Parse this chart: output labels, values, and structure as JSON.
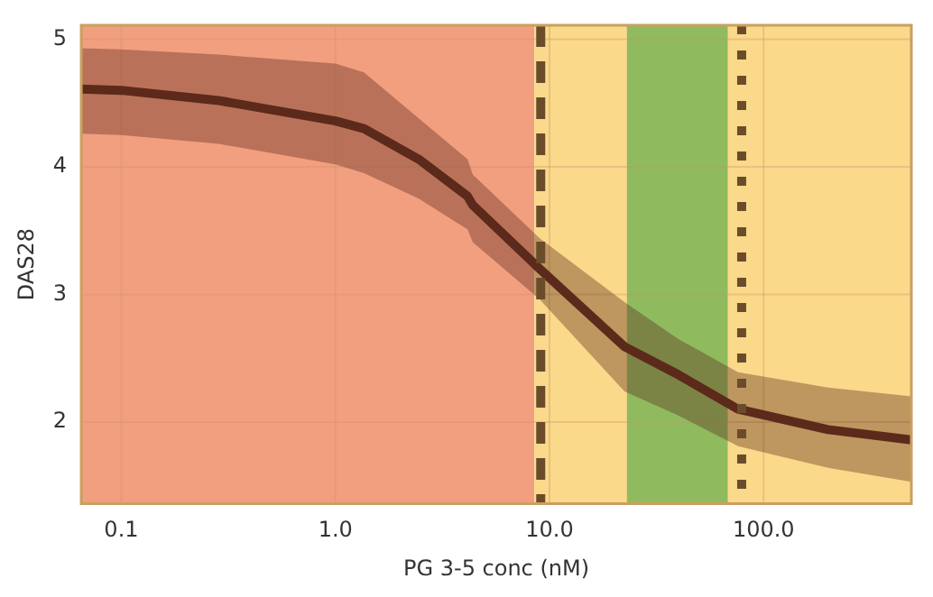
{
  "chart_data": {
    "type": "line",
    "xlabel": "PG 3-5 conc (nM)",
    "ylabel": "DAS28",
    "log": "x",
    "grid": true,
    "legend": false,
    "marker": "none",
    "line_style": "solid",
    "xlim": [
      0.065,
      490
    ],
    "ylim": [
      1.36,
      5.11
    ],
    "xticks": [
      {
        "value": 0.1,
        "label": "0.1"
      },
      {
        "value": 1,
        "label": "1.0"
      },
      {
        "value": 10,
        "label": "10.0"
      },
      {
        "value": 100,
        "label": "100.0"
      }
    ],
    "yticks": [
      2,
      3,
      4,
      5
    ],
    "bands": [
      {
        "axis": "x",
        "from": 0.065,
        "to": 8.5,
        "color": "#f29f80"
      },
      {
        "axis": "x",
        "from": 8.5,
        "to": 490,
        "color": "#fad98a"
      },
      {
        "axis": "x",
        "from": 23,
        "to": 68,
        "color": "#8fbb5e"
      }
    ],
    "ref_lines": [
      {
        "axis": "x",
        "value": 9.1,
        "color": "#6b4c2a",
        "line_style": "dashed"
      },
      {
        "axis": "x",
        "value": 79,
        "color": "#6b4c2a",
        "line_style": "dotted"
      }
    ],
    "series": [
      {
        "color": "#5c2a1a",
        "x": [
          0.065,
          0.1,
          0.285,
          1,
          1.36,
          2.45,
          4.14,
          4.38,
          9,
          22.4,
          40,
          76,
          200,
          490
        ],
        "values": [
          4.61,
          4.6,
          4.52,
          4.36,
          4.3,
          4.06,
          3.77,
          3.7,
          3.2,
          2.59,
          2.37,
          2.1,
          1.94,
          1.86
        ],
        "upper": [
          4.93,
          4.92,
          4.88,
          4.81,
          4.74,
          4.38,
          4.06,
          3.94,
          3.44,
          2.94,
          2.65,
          2.39,
          2.27,
          2.2
        ],
        "lower": [
          4.26,
          4.25,
          4.18,
          4.02,
          3.95,
          3.75,
          3.51,
          3.41,
          2.96,
          2.24,
          2.05,
          1.81,
          1.64,
          1.53
        ]
      }
    ]
  }
}
